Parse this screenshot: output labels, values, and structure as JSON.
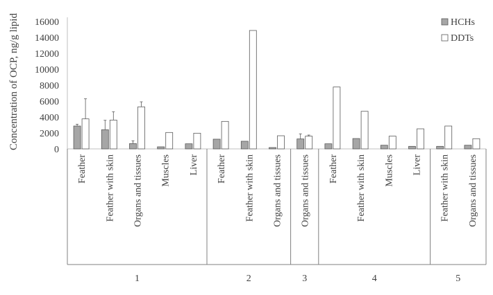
{
  "chart_data": {
    "type": "bar",
    "title": "",
    "xlabel": "",
    "ylabel": "Concentration of OCP, ng/g lipid",
    "ylim": [
      0,
      16000
    ],
    "yticks": [
      0,
      2000,
      4000,
      6000,
      8000,
      10000,
      12000,
      14000,
      16000
    ],
    "grid": false,
    "legend": "top-right",
    "groups": [
      {
        "label": "1",
        "categories": [
          "Feather",
          "Feather with skin",
          "Organs and tissues",
          "Muscles",
          "Liver"
        ]
      },
      {
        "label": "2",
        "categories": [
          "Feather",
          "Feather with skin",
          "Organs and tissues"
        ]
      },
      {
        "label": "3",
        "categories": [
          "Organs and tissues"
        ]
      },
      {
        "label": "4",
        "categories": [
          "Feather",
          "Feather with skin",
          "Muscles",
          "Liver"
        ]
      },
      {
        "label": "5",
        "categories": [
          "Feather with skin",
          "Organs and tissues"
        ]
      }
    ],
    "series": [
      {
        "name": "HCHs",
        "color": "#a6a6a6",
        "values": [
          2870,
          2410,
          670,
          260,
          640,
          1220,
          960,
          170,
          1250,
          640,
          1300,
          460,
          320,
          320,
          460
        ],
        "error_upper": [
          3100,
          3590,
          1020,
          null,
          null,
          null,
          null,
          null,
          1890,
          null,
          null,
          null,
          null,
          null,
          null
        ]
      },
      {
        "name": "DDTs",
        "color": "#ffffff",
        "values": [
          3770,
          3620,
          5280,
          2060,
          1970,
          3450,
          14870,
          1650,
          1600,
          7770,
          4720,
          1600,
          2520,
          2870,
          1280
        ],
        "error_upper": [
          6290,
          4670,
          5910,
          null,
          null,
          null,
          null,
          null,
          1740,
          null,
          null,
          null,
          null,
          null,
          null
        ]
      }
    ]
  }
}
